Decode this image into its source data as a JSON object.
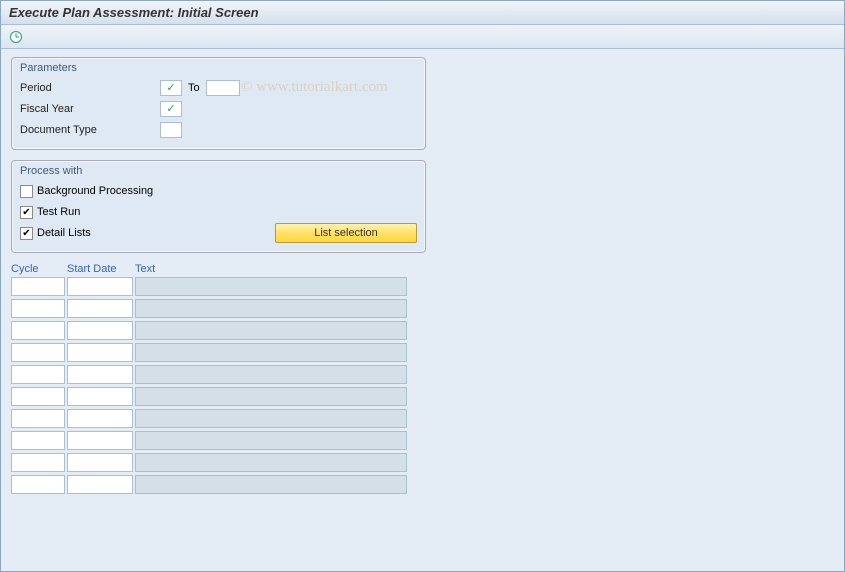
{
  "title": "Execute Plan Assessment: Initial Screen",
  "watermark": "© www.tutorialkart.com",
  "toolbar": {
    "execute_icon": "clock-execute"
  },
  "parameters": {
    "group_title": "Parameters",
    "period_label": "Period",
    "period_value": "",
    "period_required": true,
    "to_label": "To",
    "to_value": "",
    "fiscal_year_label": "Fiscal Year",
    "fiscal_year_value": "",
    "fiscal_year_required": true,
    "doc_type_label": "Document Type",
    "doc_type_value": ""
  },
  "process_with": {
    "group_title": "Process with",
    "background_label": "Background Processing",
    "background_checked": false,
    "test_run_label": "Test Run",
    "test_run_checked": true,
    "detail_lists_label": "Detail Lists",
    "detail_lists_checked": true,
    "list_selection_btn": "List selection"
  },
  "table": {
    "headers": {
      "cycle": "Cycle",
      "start_date": "Start Date",
      "text": "Text"
    },
    "row_count": 10,
    "rows": [
      {
        "cycle": "",
        "date": "",
        "text": ""
      },
      {
        "cycle": "",
        "date": "",
        "text": ""
      },
      {
        "cycle": "",
        "date": "",
        "text": ""
      },
      {
        "cycle": "",
        "date": "",
        "text": ""
      },
      {
        "cycle": "",
        "date": "",
        "text": ""
      },
      {
        "cycle": "",
        "date": "",
        "text": ""
      },
      {
        "cycle": "",
        "date": "",
        "text": ""
      },
      {
        "cycle": "",
        "date": "",
        "text": ""
      },
      {
        "cycle": "",
        "date": "",
        "text": ""
      },
      {
        "cycle": "",
        "date": "",
        "text": ""
      }
    ]
  },
  "colors": {
    "window_bg": "#e4edf5",
    "group_bg": "#dfe9f3",
    "border": "#a9bfd6",
    "header_link": "#3a5fbf",
    "button_grad_top": "#fff2b0",
    "button_grad_bot": "#ffd83d",
    "readonly_cell": "#d5dfe8"
  }
}
